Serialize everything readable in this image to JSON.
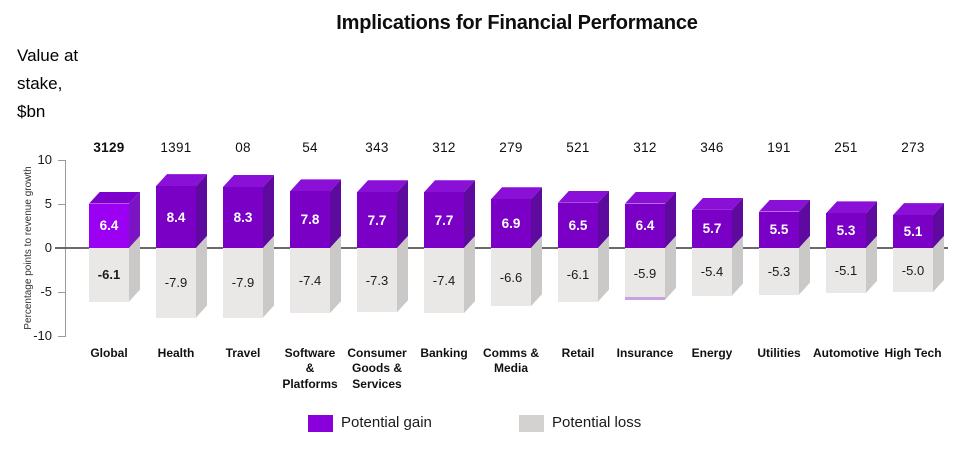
{
  "note": "Value at\nstake,\n$bn",
  "chart_data": {
    "type": "bar",
    "title": "Implications for Financial Performance",
    "xlabel": "",
    "ylabel": "Percentage points to revenue growth",
    "ylim": [
      -10,
      10
    ],
    "yticks": [
      10,
      5,
      0,
      -5,
      -10
    ],
    "grid": false,
    "legend_position": "bottom",
    "categories": [
      "Global",
      "Health",
      "Travel",
      "Software & Platforms",
      "Consumer Goods & Services",
      "Banking",
      "Comms & Media",
      "Retail",
      "Insurance",
      "Energy",
      "Utilities",
      "Automotive",
      "High Tech"
    ],
    "category_display": [
      "Global",
      "Health",
      "Travel",
      "Software\n&\nPlatforms",
      "Consumer\nGoods &\nServices",
      "Banking",
      "Comms &\nMedia",
      "Retail",
      "Insurance",
      "Energy",
      "Utilities",
      "Automotive",
      "High Tech"
    ],
    "value_at_stake_bn": [
      "3129",
      "1391",
      "08",
      "54",
      "343",
      "312",
      "279",
      "521",
      "312",
      "346",
      "191",
      "251",
      "273"
    ],
    "series": [
      {
        "name": "Potential gain",
        "values": [
          6.4,
          8.4,
          8.3,
          7.8,
          7.7,
          7.7,
          6.9,
          6.5,
          6.4,
          5.7,
          5.5,
          5.3,
          5.1
        ]
      },
      {
        "name": "Potential loss",
        "values": [
          -6.1,
          -7.9,
          -7.9,
          -7.4,
          -7.3,
          -7.4,
          -6.6,
          -6.1,
          -5.9,
          -5.4,
          -5.3,
          -5.1,
          -5.0
        ]
      }
    ]
  },
  "insurance_accent_category": "Insurance",
  "colors": {
    "gain_front": "#7a00c6",
    "gain_top": "#8a10d8",
    "gain_side": "#5e0a9e",
    "global_gain_front": "#9b00f2",
    "global_gain_top": "#7d00cc",
    "global_gain_side": "#7b15c4",
    "loss_front": "#e9e8e6",
    "loss_side": "#cbc9c8",
    "legend_gain": "#8a00da",
    "legend_loss": "#d3d2d1",
    "zero_line": "#6a6a6a",
    "axis": "#9a9a9a",
    "insurance_accent": "#c9a2e4"
  }
}
